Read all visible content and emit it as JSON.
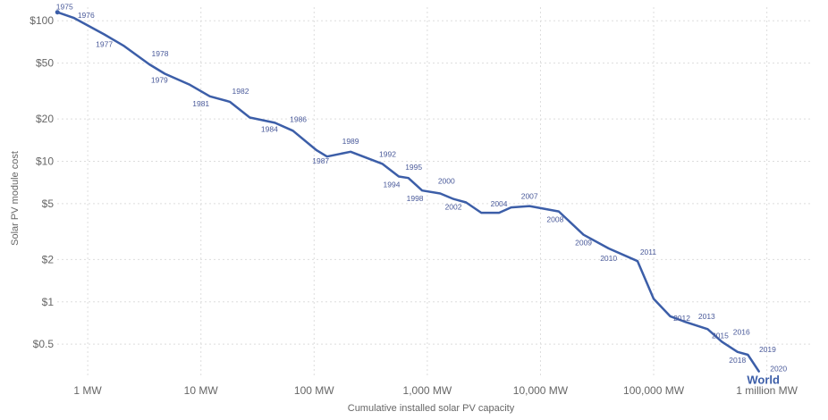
{
  "chart_data": {
    "type": "line",
    "xlabel": "Cumulative installed solar PV capacity",
    "ylabel": "Solar PV module cost",
    "x_scale": "log",
    "y_scale": "log",
    "xlim": [
      0.5,
      2500000
    ],
    "ylim": [
      0.3,
      125
    ],
    "grid": true,
    "color": "#3c5ea8",
    "x_ticks": [
      {
        "value": 1,
        "label": "1 MW"
      },
      {
        "value": 10,
        "label": "10 MW"
      },
      {
        "value": 100,
        "label": "100 MW"
      },
      {
        "value": 1000,
        "label": "1,000 MW"
      },
      {
        "value": 10000,
        "label": "10,000 MW"
      },
      {
        "value": 100000,
        "label": "100,000 MW"
      },
      {
        "value": 1000000,
        "label": "1 million MW"
      }
    ],
    "y_ticks": [
      {
        "value": 100,
        "label": "$100"
      },
      {
        "value": 50,
        "label": "$50"
      },
      {
        "value": 20,
        "label": "$20"
      },
      {
        "value": 10,
        "label": "$10"
      },
      {
        "value": 5,
        "label": "$5"
      },
      {
        "value": 2,
        "label": "$2"
      },
      {
        "value": 1,
        "label": "$1"
      },
      {
        "value": 0.5,
        "label": "$0.5"
      }
    ],
    "series": [
      {
        "name": "World",
        "points": [
          {
            "year": "1975",
            "x": 0.54,
            "y": 115
          },
          {
            "year": "1976",
            "x": 0.75,
            "y": 105
          },
          {
            "year": "1977",
            "x": 1.4,
            "y": 80
          },
          {
            "year": "",
            "x": 2.1,
            "y": 66
          },
          {
            "year": "1978",
            "x": 3.5,
            "y": 49
          },
          {
            "year": "1979",
            "x": 4.8,
            "y": 42
          },
          {
            "year": "",
            "x": 8,
            "y": 35
          },
          {
            "year": "1981",
            "x": 12,
            "y": 29
          },
          {
            "year": "1982",
            "x": 18,
            "y": 26.5
          },
          {
            "year": "",
            "x": 27,
            "y": 20.5
          },
          {
            "year": "1984",
            "x": 45,
            "y": 18.8
          },
          {
            "year": "1986",
            "x": 65,
            "y": 16.5
          },
          {
            "year": "",
            "x": 105,
            "y": 12
          },
          {
            "year": "1987",
            "x": 130,
            "y": 10.8
          },
          {
            "year": "1989",
            "x": 210,
            "y": 11.7
          },
          {
            "year": "1992",
            "x": 400,
            "y": 9.6
          },
          {
            "year": "1994",
            "x": 560,
            "y": 7.8
          },
          {
            "year": "1995",
            "x": 680,
            "y": 7.6
          },
          {
            "year": "1998",
            "x": 900,
            "y": 6.2
          },
          {
            "year": "2000",
            "x": 1300,
            "y": 5.9
          },
          {
            "year": "2002",
            "x": 1700,
            "y": 5.4
          },
          {
            "year": "",
            "x": 2200,
            "y": 5.1
          },
          {
            "year": "",
            "x": 3000,
            "y": 4.3
          },
          {
            "year": "2004",
            "x": 4300,
            "y": 4.3
          },
          {
            "year": "",
            "x": 5500,
            "y": 4.7
          },
          {
            "year": "2007",
            "x": 8000,
            "y": 4.8
          },
          {
            "year": "2008",
            "x": 14500,
            "y": 4.4
          },
          {
            "year": "2009",
            "x": 24000,
            "y": 3.0
          },
          {
            "year": "2010",
            "x": 40000,
            "y": 2.4
          },
          {
            "year": "2011",
            "x": 72000,
            "y": 1.95
          },
          {
            "year": "",
            "x": 100000,
            "y": 1.05
          },
          {
            "year": "2012",
            "x": 140000,
            "y": 0.79
          },
          {
            "year": "2013",
            "x": 190000,
            "y": 0.72
          },
          {
            "year": "2015",
            "x": 300000,
            "y": 0.64
          },
          {
            "year": "2016",
            "x": 400000,
            "y": 0.52
          },
          {
            "year": "2018",
            "x": 550000,
            "y": 0.44
          },
          {
            "year": "2019",
            "x": 680000,
            "y": 0.42
          },
          {
            "year": "2020",
            "x": 850000,
            "y": 0.32
          }
        ]
      }
    ]
  }
}
